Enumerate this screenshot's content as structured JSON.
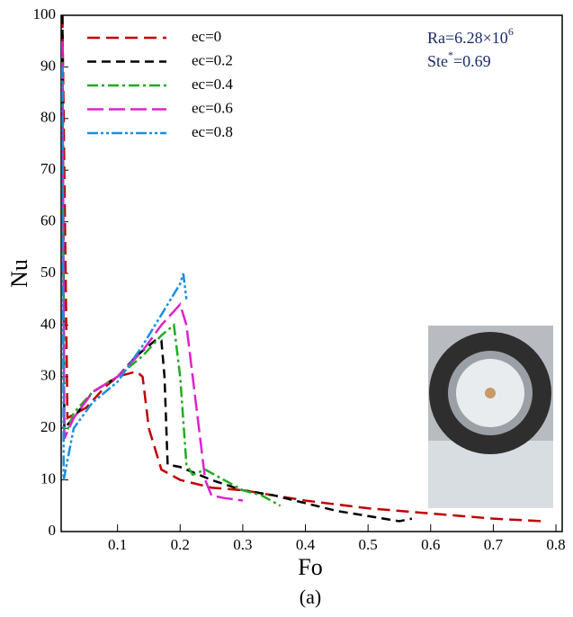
{
  "chart_data": {
    "type": "line",
    "x_label": "Fo",
    "y_label": "Nu",
    "caption": "(a)",
    "annotation": {
      "ra": "Ra=6.28×10",
      "ra_exp": "6",
      "ste": "Ste",
      "ste_sup": "*",
      "ste_value": "=0.69"
    },
    "xlim": [
      0.01,
      0.81
    ],
    "xticks": [
      0.1,
      0.2,
      0.3,
      0.4,
      0.5,
      0.6,
      0.7,
      0.8
    ],
    "ylim": [
      0,
      100
    ],
    "yticks": [
      0,
      10,
      20,
      30,
      40,
      50,
      60,
      70,
      80,
      90,
      100
    ],
    "legend": "top-left",
    "series": [
      {
        "name": "ec=0",
        "color": "#c00000",
        "dash": "14 7",
        "x": [
          0.012,
          0.02,
          0.05,
          0.08,
          0.1,
          0.13,
          0.14,
          0.15,
          0.17,
          0.2,
          0.25,
          0.3,
          0.35,
          0.4,
          0.5,
          0.6,
          0.7,
          0.78
        ],
        "values": [
          100,
          22,
          24,
          28,
          30,
          31,
          30,
          20,
          12,
          10,
          8.5,
          8,
          7,
          6,
          4.5,
          3.5,
          2.5,
          2
        ]
      },
      {
        "name": "ec=0.2",
        "color": "#000000",
        "dash": "10 6",
        "x": [
          0.012,
          0.015,
          0.03,
          0.06,
          0.1,
          0.13,
          0.16,
          0.17,
          0.175,
          0.18,
          0.2,
          0.25,
          0.3,
          0.35,
          0.4,
          0.45,
          0.5,
          0.55,
          0.57
        ],
        "values": [
          100,
          20,
          22,
          27,
          30,
          34,
          37,
          37,
          30,
          13,
          12.5,
          10,
          8,
          7,
          5.5,
          4,
          3,
          2,
          2.5
        ]
      },
      {
        "name": "ec=0.4",
        "color": "#22aa22",
        "dash": "12 4 3 4",
        "x": [
          0.012,
          0.015,
          0.03,
          0.06,
          0.1,
          0.14,
          0.17,
          0.19,
          0.2,
          0.21,
          0.22,
          0.24,
          0.27,
          0.3,
          0.33,
          0.36
        ],
        "values": [
          95,
          18,
          23,
          27,
          30,
          34,
          38,
          40,
          30,
          13,
          11,
          12,
          10,
          8,
          7,
          5
        ]
      },
      {
        "name": "ec=0.6",
        "color": "#dd22cc",
        "dash": "18 6",
        "x": [
          0.012,
          0.015,
          0.03,
          0.06,
          0.1,
          0.14,
          0.17,
          0.2,
          0.21,
          0.23,
          0.24,
          0.25,
          0.27,
          0.3
        ],
        "values": [
          95,
          18,
          22,
          27,
          30,
          35,
          40,
          44,
          40,
          20,
          10,
          7,
          6.5,
          6
        ]
      },
      {
        "name": "ec=0.8",
        "color": "#1a8fe0",
        "dash": "12 3 3 3 3 3",
        "x": [
          0.012,
          0.014,
          0.03,
          0.06,
          0.1,
          0.14,
          0.17,
          0.2,
          0.205,
          0.21
        ],
        "values": [
          90,
          10,
          20,
          25,
          29,
          36,
          42,
          48,
          50,
          45
        ]
      }
    ]
  }
}
